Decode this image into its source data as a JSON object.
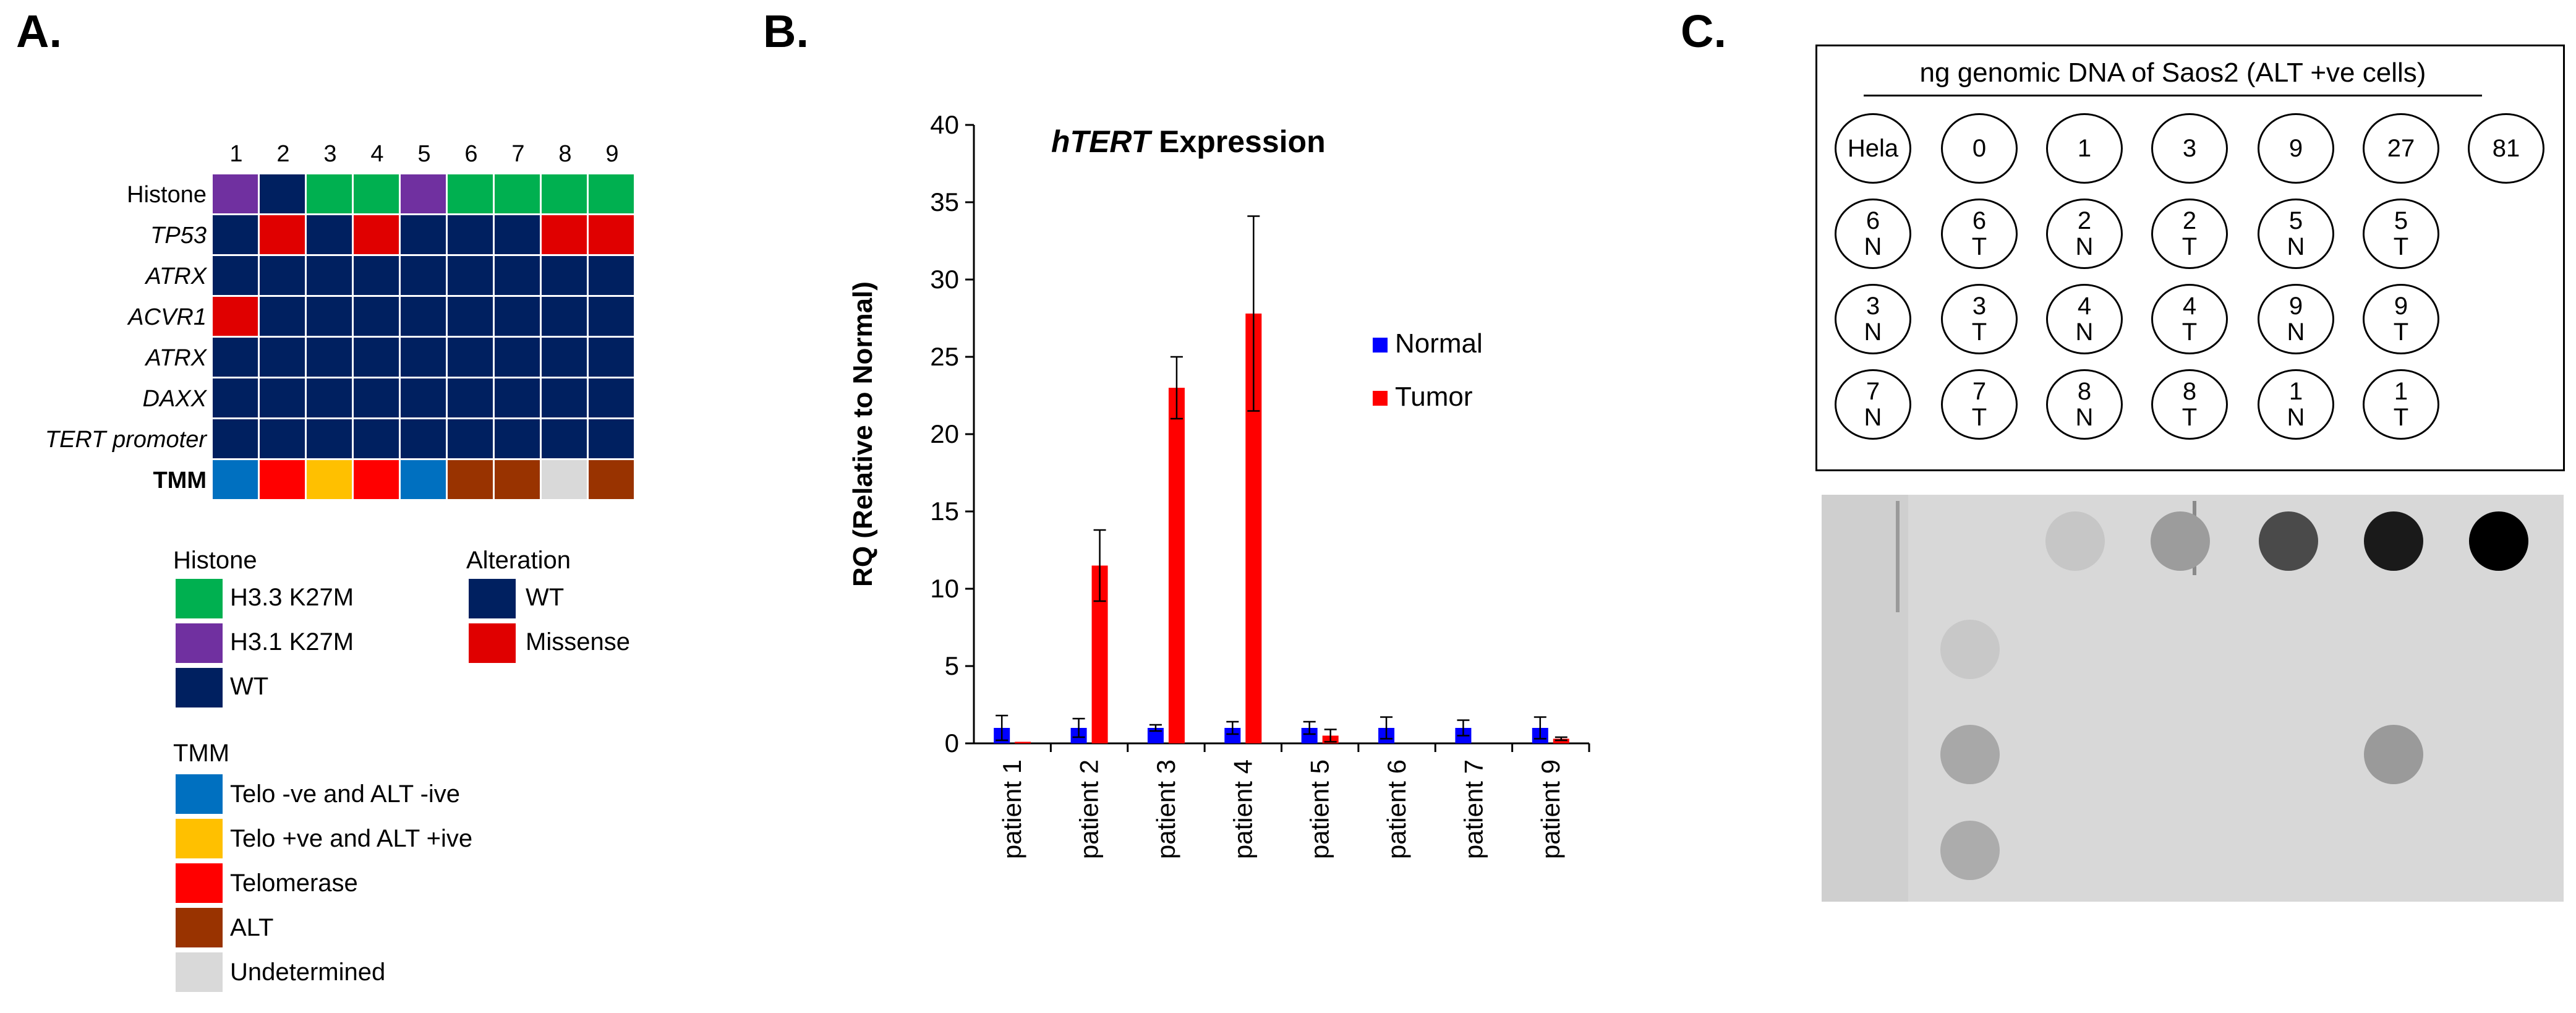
{
  "panels": {
    "a": "A.",
    "b": "B.",
    "c": "C."
  },
  "heatmap": {
    "columns": [
      "1",
      "2",
      "3",
      "4",
      "5",
      "6",
      "7",
      "8",
      "9"
    ],
    "rows": [
      {
        "label": "Histone",
        "style": "normal",
        "cells": [
          "H3.1",
          "WT",
          "H3.3",
          "H3.3",
          "H3.1",
          "H3.3",
          "H3.3",
          "H3.3",
          "H3.3"
        ]
      },
      {
        "label": "TP53",
        "style": "italic",
        "cells": [
          "WT",
          "Missense",
          "WT",
          "Missense",
          "WT",
          "WT",
          "WT",
          "Missense",
          "Missense"
        ]
      },
      {
        "label": "ATRX",
        "style": "italic",
        "cells": [
          "WT",
          "WT",
          "WT",
          "WT",
          "WT",
          "WT",
          "WT",
          "WT",
          "WT"
        ]
      },
      {
        "label": "ACVR1",
        "style": "italic",
        "cells": [
          "Missense",
          "WT",
          "WT",
          "WT",
          "WT",
          "WT",
          "WT",
          "WT",
          "WT"
        ]
      },
      {
        "label": "ATRX",
        "style": "italic",
        "cells": [
          "WT",
          "WT",
          "WT",
          "WT",
          "WT",
          "WT",
          "WT",
          "WT",
          "WT"
        ]
      },
      {
        "label": "DAXX",
        "style": "italic",
        "cells": [
          "WT",
          "WT",
          "WT",
          "WT",
          "WT",
          "WT",
          "WT",
          "WT",
          "WT"
        ]
      },
      {
        "label": "TERT promoter",
        "style": "italic",
        "cells": [
          "WT",
          "WT",
          "WT",
          "WT",
          "WT",
          "WT",
          "WT",
          "WT",
          "WT"
        ]
      },
      {
        "label": "TMM",
        "style": "bold",
        "cells": [
          "TeloNeg",
          "Telomerase",
          "TeloPos",
          "Telomerase",
          "TeloNeg",
          "ALT",
          "ALT",
          "Undet",
          "ALT"
        ]
      }
    ],
    "colors": {
      "H3.3": "#00b050",
      "H3.1": "#7030a0",
      "WT": "#002060",
      "Missense": "#e00000",
      "TeloNeg": "#0070c0",
      "TeloPos": "#ffc000",
      "Telomerase": "#ff0000",
      "ALT": "#993300",
      "Undet": "#d9d9d9"
    },
    "legend": {
      "histone_title": "Histone",
      "histone": [
        {
          "key": "H3.3",
          "label": "H3.3 K27M"
        },
        {
          "key": "H3.1",
          "label": "H3.1 K27M"
        },
        {
          "key": "WT",
          "label": "WT"
        }
      ],
      "alteration_title": "Alteration",
      "alteration": [
        {
          "key": "WT",
          "label": "WT"
        },
        {
          "key": "Missense",
          "label": "Missense"
        }
      ],
      "tmm_title": "TMM",
      "tmm": [
        {
          "key": "TeloNeg",
          "label": "Telo -ve and ALT -ive"
        },
        {
          "key": "TeloPos",
          "label": "Telo +ve and ALT +ive"
        },
        {
          "key": "Telomerase",
          "label": "Telomerase"
        },
        {
          "key": "ALT",
          "label": "ALT"
        },
        {
          "key": "Undet",
          "label": "Undetermined"
        }
      ]
    }
  },
  "chart_data": {
    "type": "bar",
    "title_italic": "hTERT",
    "title_rest": " Expression",
    "ylabel": "RQ (Relative to Normal)",
    "ylim": [
      0,
      40
    ],
    "yticks": [
      "0",
      "5",
      "10",
      "15",
      "20",
      "25",
      "30",
      "35",
      "40"
    ],
    "categories": [
      "patient 1",
      "patient 2",
      "patient 3",
      "patient 4",
      "patient 5",
      "patient 6",
      "patient 7",
      "patient 9"
    ],
    "series": [
      {
        "name": "Normal",
        "color": "#0000ff",
        "values": [
          1,
          1,
          1,
          1,
          1,
          1,
          1,
          1
        ],
        "errors": [
          0.8,
          0.6,
          0.2,
          0.4,
          0.4,
          0.7,
          0.5,
          0.7
        ]
      },
      {
        "name": "Tumor",
        "color": "#ff0000",
        "values": [
          0.1,
          11.5,
          23,
          27.8,
          0.5,
          0,
          0,
          0.3
        ],
        "errors": [
          0,
          2.3,
          2,
          6.3,
          0.4,
          0,
          0,
          0.1
        ]
      }
    ],
    "legend": [
      "Normal",
      "Tumor"
    ]
  },
  "dotblot": {
    "header": "ng genomic DNA of Saos2 (ALT +ve cells)",
    "row1": [
      "Hela",
      "0",
      "1",
      "3",
      "9",
      "27",
      "81"
    ],
    "samples": [
      [
        [
          "6",
          "N"
        ],
        [
          "6",
          "T"
        ],
        [
          "2",
          "N"
        ],
        [
          "2",
          "T"
        ],
        [
          "5",
          "N"
        ],
        [
          "5",
          "T"
        ]
      ],
      [
        [
          "3",
          "N"
        ],
        [
          "3",
          "T"
        ],
        [
          "4",
          "N"
        ],
        [
          "4",
          "T"
        ],
        [
          "9",
          "N"
        ],
        [
          "9",
          "T"
        ]
      ],
      [
        [
          "7",
          "N"
        ],
        [
          "7",
          "T"
        ],
        [
          "8",
          "N"
        ],
        [
          "8",
          "T"
        ],
        [
          "1",
          "N"
        ],
        [
          "1",
          "T"
        ]
      ]
    ]
  }
}
